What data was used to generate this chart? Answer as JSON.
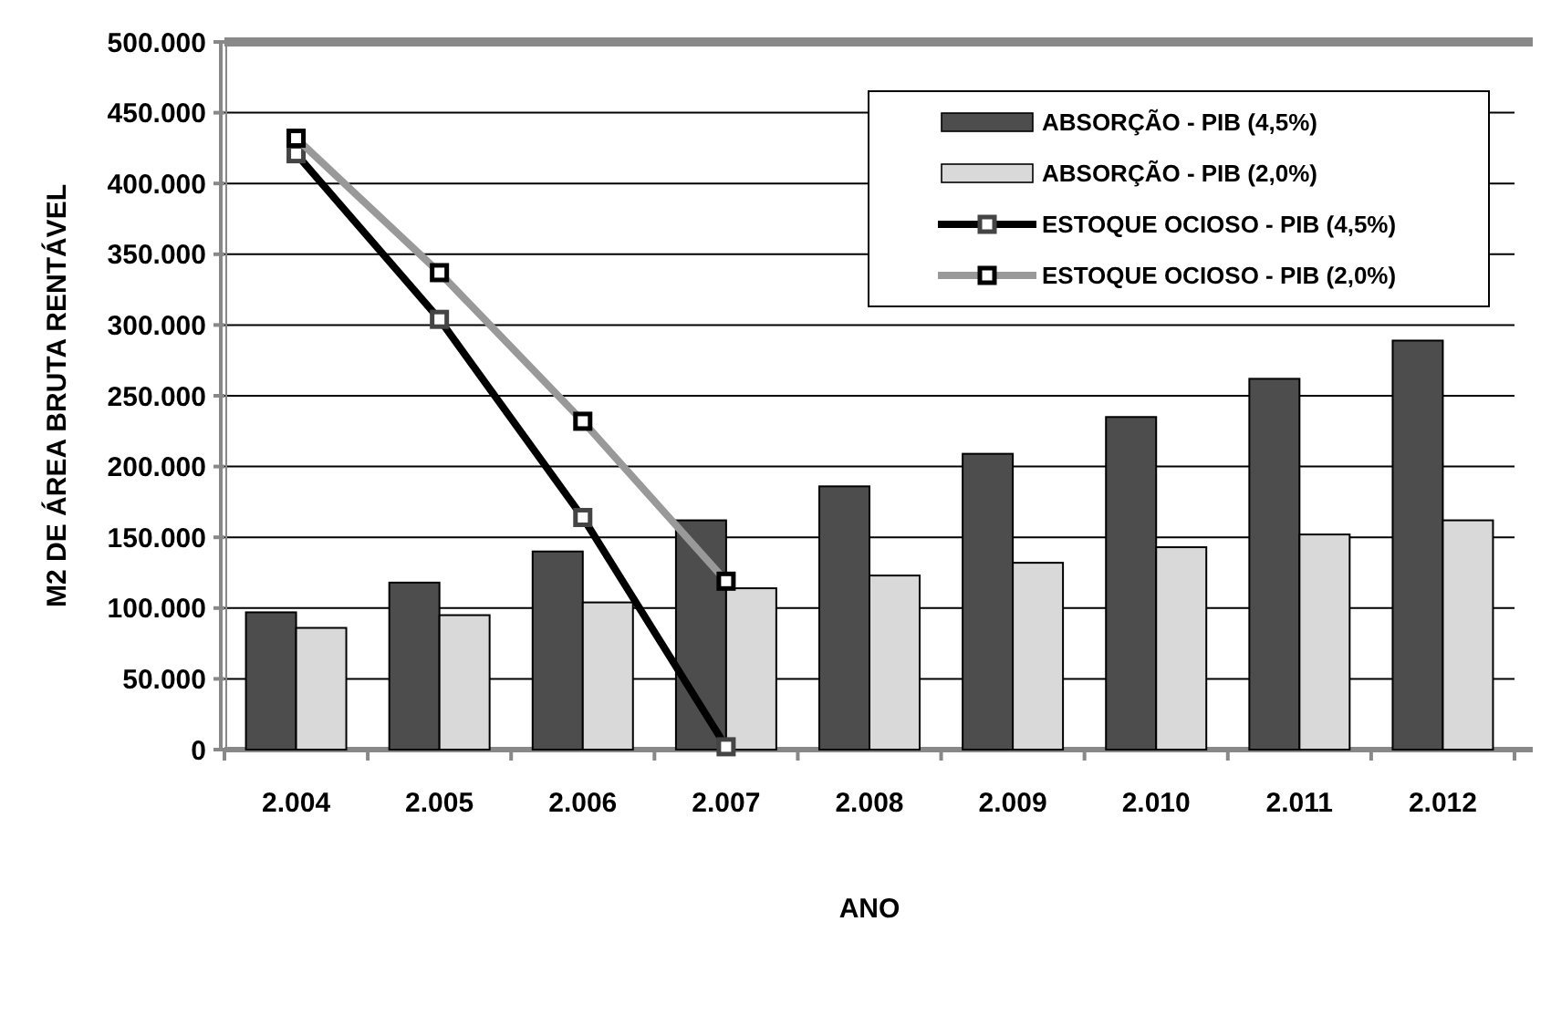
{
  "chart_data": {
    "type": "bar",
    "xlabel": "ANO",
    "ylabel": "M2 DE ÁREA BRUTA RENTÁVEL",
    "categories": [
      "2.004",
      "2.005",
      "2.006",
      "2.007",
      "2.008",
      "2.009",
      "2.010",
      "2.011",
      "2.012"
    ],
    "series": [
      {
        "name": "ABSORÇÃO - PIB (4,5%)",
        "color": "#4d4d4d",
        "values": [
          97000,
          118000,
          140000,
          162000,
          186000,
          209000,
          235000,
          262000,
          289000
        ]
      },
      {
        "name": "ABSORÇÃO - PIB (2,0%)",
        "color": "#d9d9d9",
        "values": [
          86000,
          95000,
          104000,
          114000,
          123000,
          132000,
          143000,
          152000,
          162000
        ]
      },
      {
        "name": "ESTOQUE OCIOSO - PIB (4,5%)",
        "type": "line",
        "color": "#000000",
        "marker": "square",
        "values": [
          421000,
          304000,
          164000,
          2000,
          null,
          null,
          null,
          null,
          null
        ]
      },
      {
        "name": "ESTOQUE OCIOSO - PIB (2,0%)",
        "type": "line",
        "color": "#999999",
        "marker": "square",
        "values": [
          432000,
          337000,
          232000,
          119000,
          null,
          null,
          null,
          null,
          null
        ]
      }
    ],
    "ylim": [
      0,
      500000
    ],
    "yticks": [
      {
        "value": 0,
        "label": "0"
      },
      {
        "value": 50000,
        "label": "50.000"
      },
      {
        "value": 100000,
        "label": "100.000"
      },
      {
        "value": 150000,
        "label": "150.000"
      },
      {
        "value": 200000,
        "label": "200.000"
      },
      {
        "value": 250000,
        "label": "250.000"
      },
      {
        "value": 300000,
        "label": "300.000"
      },
      {
        "value": 350000,
        "label": "350.000"
      },
      {
        "value": 400000,
        "label": "400.000"
      },
      {
        "value": 450000,
        "label": "450.000"
      },
      {
        "value": 500000,
        "label": "500.000"
      }
    ],
    "grid": "y",
    "legend": "top right"
  }
}
